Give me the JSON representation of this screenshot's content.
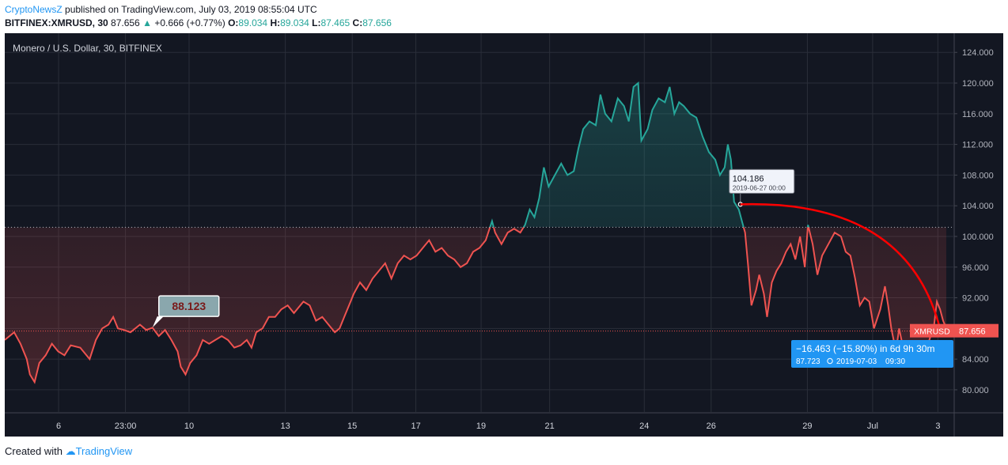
{
  "header": {
    "brand": "CryptoNewsZ",
    "published": " published on TradingView.com, July 03, 2019 08:55:04 UTC",
    "symbol": "BITFINEX:XMRUSD, 30",
    "last": "87.656",
    "change": "+0.666 (+0.77%)",
    "o_label": "O:",
    "o": "89.034",
    "h_label": "H:",
    "h": "89.034",
    "l_label": "L:",
    "l": "87.465",
    "c_label": "C:",
    "c": "87.656"
  },
  "footer": {
    "prefix": "Created with ",
    "brand": "TradingView"
  },
  "colors": {
    "background": "#131722",
    "up": "#26a69a",
    "down": "#ef5350",
    "measure": "#2196f3",
    "curve": "#ff0000"
  },
  "chart_data": {
    "type": "line",
    "title": "Monero / U.S. Dollar, 30, BITFINEX",
    "ylim": [
      77.0,
      126.5
    ],
    "yticks": [
      80,
      84,
      88,
      92,
      96,
      100,
      104,
      108,
      112,
      116,
      120,
      124
    ],
    "ytick_labels": [
      "80.000",
      "84.000",
      "",
      "92.000",
      "96.000",
      "100.000",
      "104.000",
      "108.000",
      "112.000",
      "116.000",
      "120.000",
      "124.000"
    ],
    "xticks": [
      {
        "label": "6",
        "t": 1.65
      },
      {
        "label": "23:00",
        "t": 3.7
      },
      {
        "label": "10",
        "t": 5.65
      },
      {
        "label": "13",
        "t": 8.6
      },
      {
        "label": "15",
        "t": 10.65
      },
      {
        "label": "17",
        "t": 12.6
      },
      {
        "label": "19",
        "t": 14.6
      },
      {
        "label": "21",
        "t": 16.7
      },
      {
        "label": "24",
        "t": 19.6
      },
      {
        "label": "26",
        "t": 21.65
      },
      {
        "label": "29",
        "t": 24.6
      },
      {
        "label": "Jul",
        "t": 26.6
      },
      {
        "label": "3",
        "t": 28.6
      }
    ],
    "xlim": [
      0,
      29.1
    ],
    "baseline": 101.2,
    "last_price_line": 87.656,
    "series": [
      {
        "price_points": [
          [
            0.0,
            86.5
          ],
          [
            0.3,
            87.5
          ],
          [
            0.5,
            86.0
          ],
          [
            0.7,
            84.0
          ],
          [
            0.8,
            82.0
          ],
          [
            0.95,
            81.0
          ],
          [
            1.1,
            83.5
          ],
          [
            1.3,
            84.5
          ],
          [
            1.5,
            86.0
          ],
          [
            1.7,
            85.0
          ],
          [
            1.9,
            84.5
          ],
          [
            2.1,
            85.8
          ],
          [
            2.4,
            85.5
          ],
          [
            2.7,
            84.0
          ],
          [
            2.9,
            86.5
          ],
          [
            3.1,
            88.0
          ],
          [
            3.3,
            88.5
          ],
          [
            3.45,
            89.5
          ],
          [
            3.6,
            88.0
          ],
          [
            3.8,
            87.8
          ],
          [
            4.0,
            87.5
          ],
          [
            4.3,
            88.5
          ],
          [
            4.5,
            87.8
          ],
          [
            4.7,
            88.1
          ],
          [
            4.9,
            87.0
          ],
          [
            5.1,
            87.8
          ],
          [
            5.3,
            86.5
          ],
          [
            5.5,
            85.0
          ],
          [
            5.6,
            83.0
          ],
          [
            5.75,
            82.0
          ],
          [
            5.9,
            83.5
          ],
          [
            6.1,
            84.5
          ],
          [
            6.3,
            86.5
          ],
          [
            6.5,
            86.0
          ],
          [
            6.7,
            86.5
          ],
          [
            6.9,
            87.0
          ],
          [
            7.1,
            86.5
          ],
          [
            7.3,
            85.5
          ],
          [
            7.5,
            85.8
          ],
          [
            7.7,
            86.5
          ],
          [
            7.85,
            85.5
          ],
          [
            8.0,
            87.5
          ],
          [
            8.2,
            88.0
          ],
          [
            8.4,
            89.5
          ],
          [
            8.6,
            89.5
          ],
          [
            8.8,
            90.5
          ],
          [
            9.0,
            91.0
          ],
          [
            9.2,
            90.0
          ],
          [
            9.5,
            91.5
          ],
          [
            9.7,
            91.0
          ],
          [
            9.9,
            89.0
          ],
          [
            10.1,
            89.5
          ],
          [
            10.3,
            88.5
          ],
          [
            10.5,
            87.5
          ],
          [
            10.65,
            88.0
          ],
          [
            10.8,
            89.5
          ],
          [
            11.0,
            91.5
          ],
          [
            11.1,
            92.5
          ],
          [
            11.3,
            94.0
          ],
          [
            11.5,
            93.0
          ],
          [
            11.7,
            94.5
          ],
          [
            11.9,
            95.5
          ],
          [
            12.1,
            96.5
          ],
          [
            12.3,
            94.5
          ],
          [
            12.5,
            96.5
          ],
          [
            12.7,
            97.5
          ],
          [
            12.9,
            97.0
          ],
          [
            13.1,
            97.5
          ],
          [
            13.3,
            98.5
          ],
          [
            13.5,
            99.5
          ],
          [
            13.7,
            98.0
          ],
          [
            13.9,
            98.5
          ],
          [
            14.1,
            97.5
          ],
          [
            14.3,
            97.0
          ],
          [
            14.5,
            96.0
          ],
          [
            14.7,
            96.5
          ],
          [
            14.9,
            98.0
          ],
          [
            15.1,
            98.5
          ],
          [
            15.3,
            99.5
          ],
          [
            15.5,
            102.0
          ],
          [
            15.6,
            100.5
          ],
          [
            15.8,
            99.0
          ],
          [
            16.0,
            100.5
          ],
          [
            16.2,
            101.0
          ],
          [
            16.4,
            100.5
          ],
          [
            16.55,
            101.5
          ],
          [
            16.7,
            103.5
          ],
          [
            16.85,
            102.5
          ],
          [
            17.0,
            105.0
          ],
          [
            17.15,
            109.0
          ],
          [
            17.3,
            106.5
          ],
          [
            17.5,
            108.0
          ],
          [
            17.7,
            109.5
          ],
          [
            17.9,
            108.0
          ],
          [
            18.1,
            108.5
          ],
          [
            18.25,
            111.5
          ],
          [
            18.4,
            114.0
          ],
          [
            18.6,
            115.0
          ],
          [
            18.8,
            114.5
          ],
          [
            18.95,
            118.5
          ],
          [
            19.1,
            116.0
          ],
          [
            19.3,
            115.0
          ],
          [
            19.5,
            118.0
          ],
          [
            19.7,
            117.0
          ],
          [
            19.85,
            115.0
          ],
          [
            20.0,
            119.5
          ],
          [
            20.15,
            120.0
          ],
          [
            20.25,
            112.5
          ],
          [
            20.45,
            114.0
          ],
          [
            20.6,
            116.5
          ],
          [
            20.8,
            118.0
          ],
          [
            21.0,
            117.5
          ],
          [
            21.15,
            119.5
          ],
          [
            21.3,
            116.0
          ],
          [
            21.45,
            117.5
          ],
          [
            21.6,
            117.0
          ],
          [
            21.8,
            116.0
          ],
          [
            22.0,
            115.5
          ],
          [
            22.2,
            113.0
          ],
          [
            22.4,
            111.0
          ],
          [
            22.6,
            110.0
          ],
          [
            22.75,
            108.0
          ],
          [
            22.9,
            109.0
          ],
          [
            23.0,
            112.0
          ],
          [
            23.1,
            110.0
          ],
          [
            23.2,
            104.5
          ],
          [
            23.35,
            103.5
          ],
          [
            23.45,
            102.0
          ],
          [
            23.55,
            100.5
          ],
          [
            23.65,
            96.0
          ],
          [
            23.75,
            91.0
          ],
          [
            23.9,
            93.0
          ],
          [
            24.0,
            95.0
          ],
          [
            24.15,
            92.5
          ],
          [
            24.25,
            89.5
          ],
          [
            24.4,
            94.0
          ],
          [
            24.55,
            95.5
          ],
          [
            24.7,
            96.5
          ],
          [
            24.85,
            98.0
          ],
          [
            25.0,
            99.0
          ],
          [
            25.15,
            97.0
          ],
          [
            25.3,
            100.0
          ],
          [
            25.45,
            96.0
          ],
          [
            25.55,
            101.5
          ],
          [
            25.7,
            99.0
          ],
          [
            25.85,
            95.0
          ],
          [
            26.0,
            97.5
          ],
          [
            26.2,
            99.0
          ],
          [
            26.4,
            100.5
          ],
          [
            26.6,
            100.0
          ],
          [
            26.75,
            98.0
          ],
          [
            26.9,
            97.5
          ],
          [
            27.05,
            94.5
          ],
          [
            27.2,
            91.0
          ],
          [
            27.35,
            92.0
          ],
          [
            27.5,
            91.5
          ],
          [
            27.65,
            88.0
          ],
          [
            27.85,
            90.5
          ],
          [
            28.0,
            93.5
          ],
          [
            28.1,
            91.0
          ],
          [
            28.2,
            88.0
          ],
          [
            28.35,
            85.0
          ],
          [
            28.45,
            88.0
          ],
          [
            28.55,
            86.0
          ],
          [
            28.7,
            84.5
          ],
          [
            28.85,
            85.5
          ],
          [
            29.0,
            83.5
          ],
          [
            29.15,
            86.0
          ],
          [
            29.3,
            85.0
          ],
          [
            29.45,
            87.0
          ],
          [
            29.55,
            88.0
          ],
          [
            29.65,
            91.5
          ],
          [
            29.75,
            90.5
          ],
          [
            29.85,
            89.0
          ],
          [
            29.95,
            88.0
          ]
        ],
        "x_scale_max": 29.95
      }
    ],
    "annotations": {
      "price_label": "88.123",
      "callout_price": "104.186",
      "callout_date": "2019-06-27 00:00",
      "measure_main": "−16.463 (−15.80%) in 6d 9h 30m",
      "measure_sub": "87.723",
      "measure_date": "2019-07-03",
      "measure_time": "09:30",
      "last_label": "XMRUSD",
      "last_price": "87.656"
    }
  }
}
